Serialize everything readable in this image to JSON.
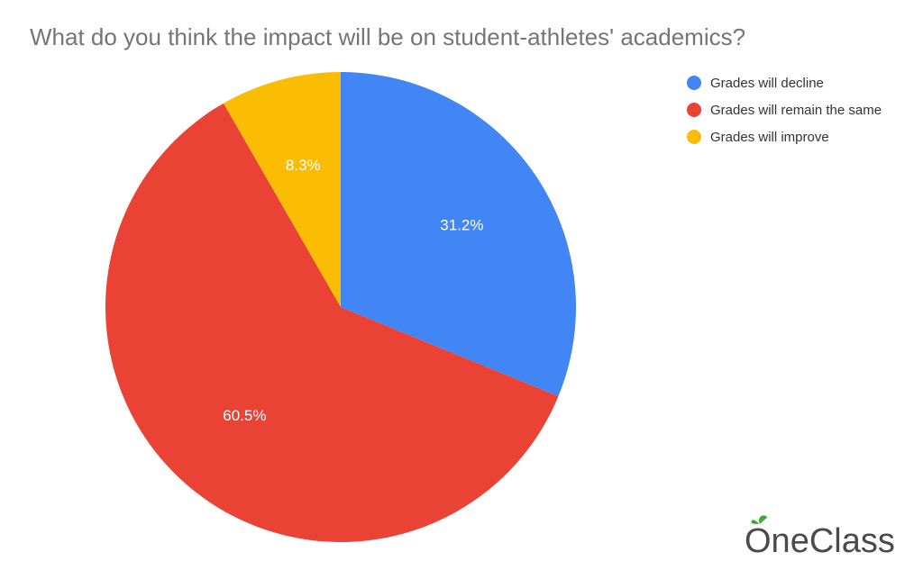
{
  "chart_data": {
    "type": "pie",
    "title": "What do you think the impact will be on student-athletes' academics?",
    "legend_position": "right",
    "slices": [
      {
        "label": "Grades will decline",
        "value": 31.2,
        "value_label": "31.2%",
        "color": "#4285F4"
      },
      {
        "label": "Grades will remain the same",
        "value": 60.5,
        "value_label": "60.5%",
        "color": "#EA4335"
      },
      {
        "label": "Grades will improve",
        "value": 8.3,
        "value_label": "8.3%",
        "color": "#FBBC04"
      }
    ]
  },
  "brand": {
    "name": "OneClass",
    "leaf_color": "#3AAA35",
    "text_color": "#4a4a4a"
  }
}
